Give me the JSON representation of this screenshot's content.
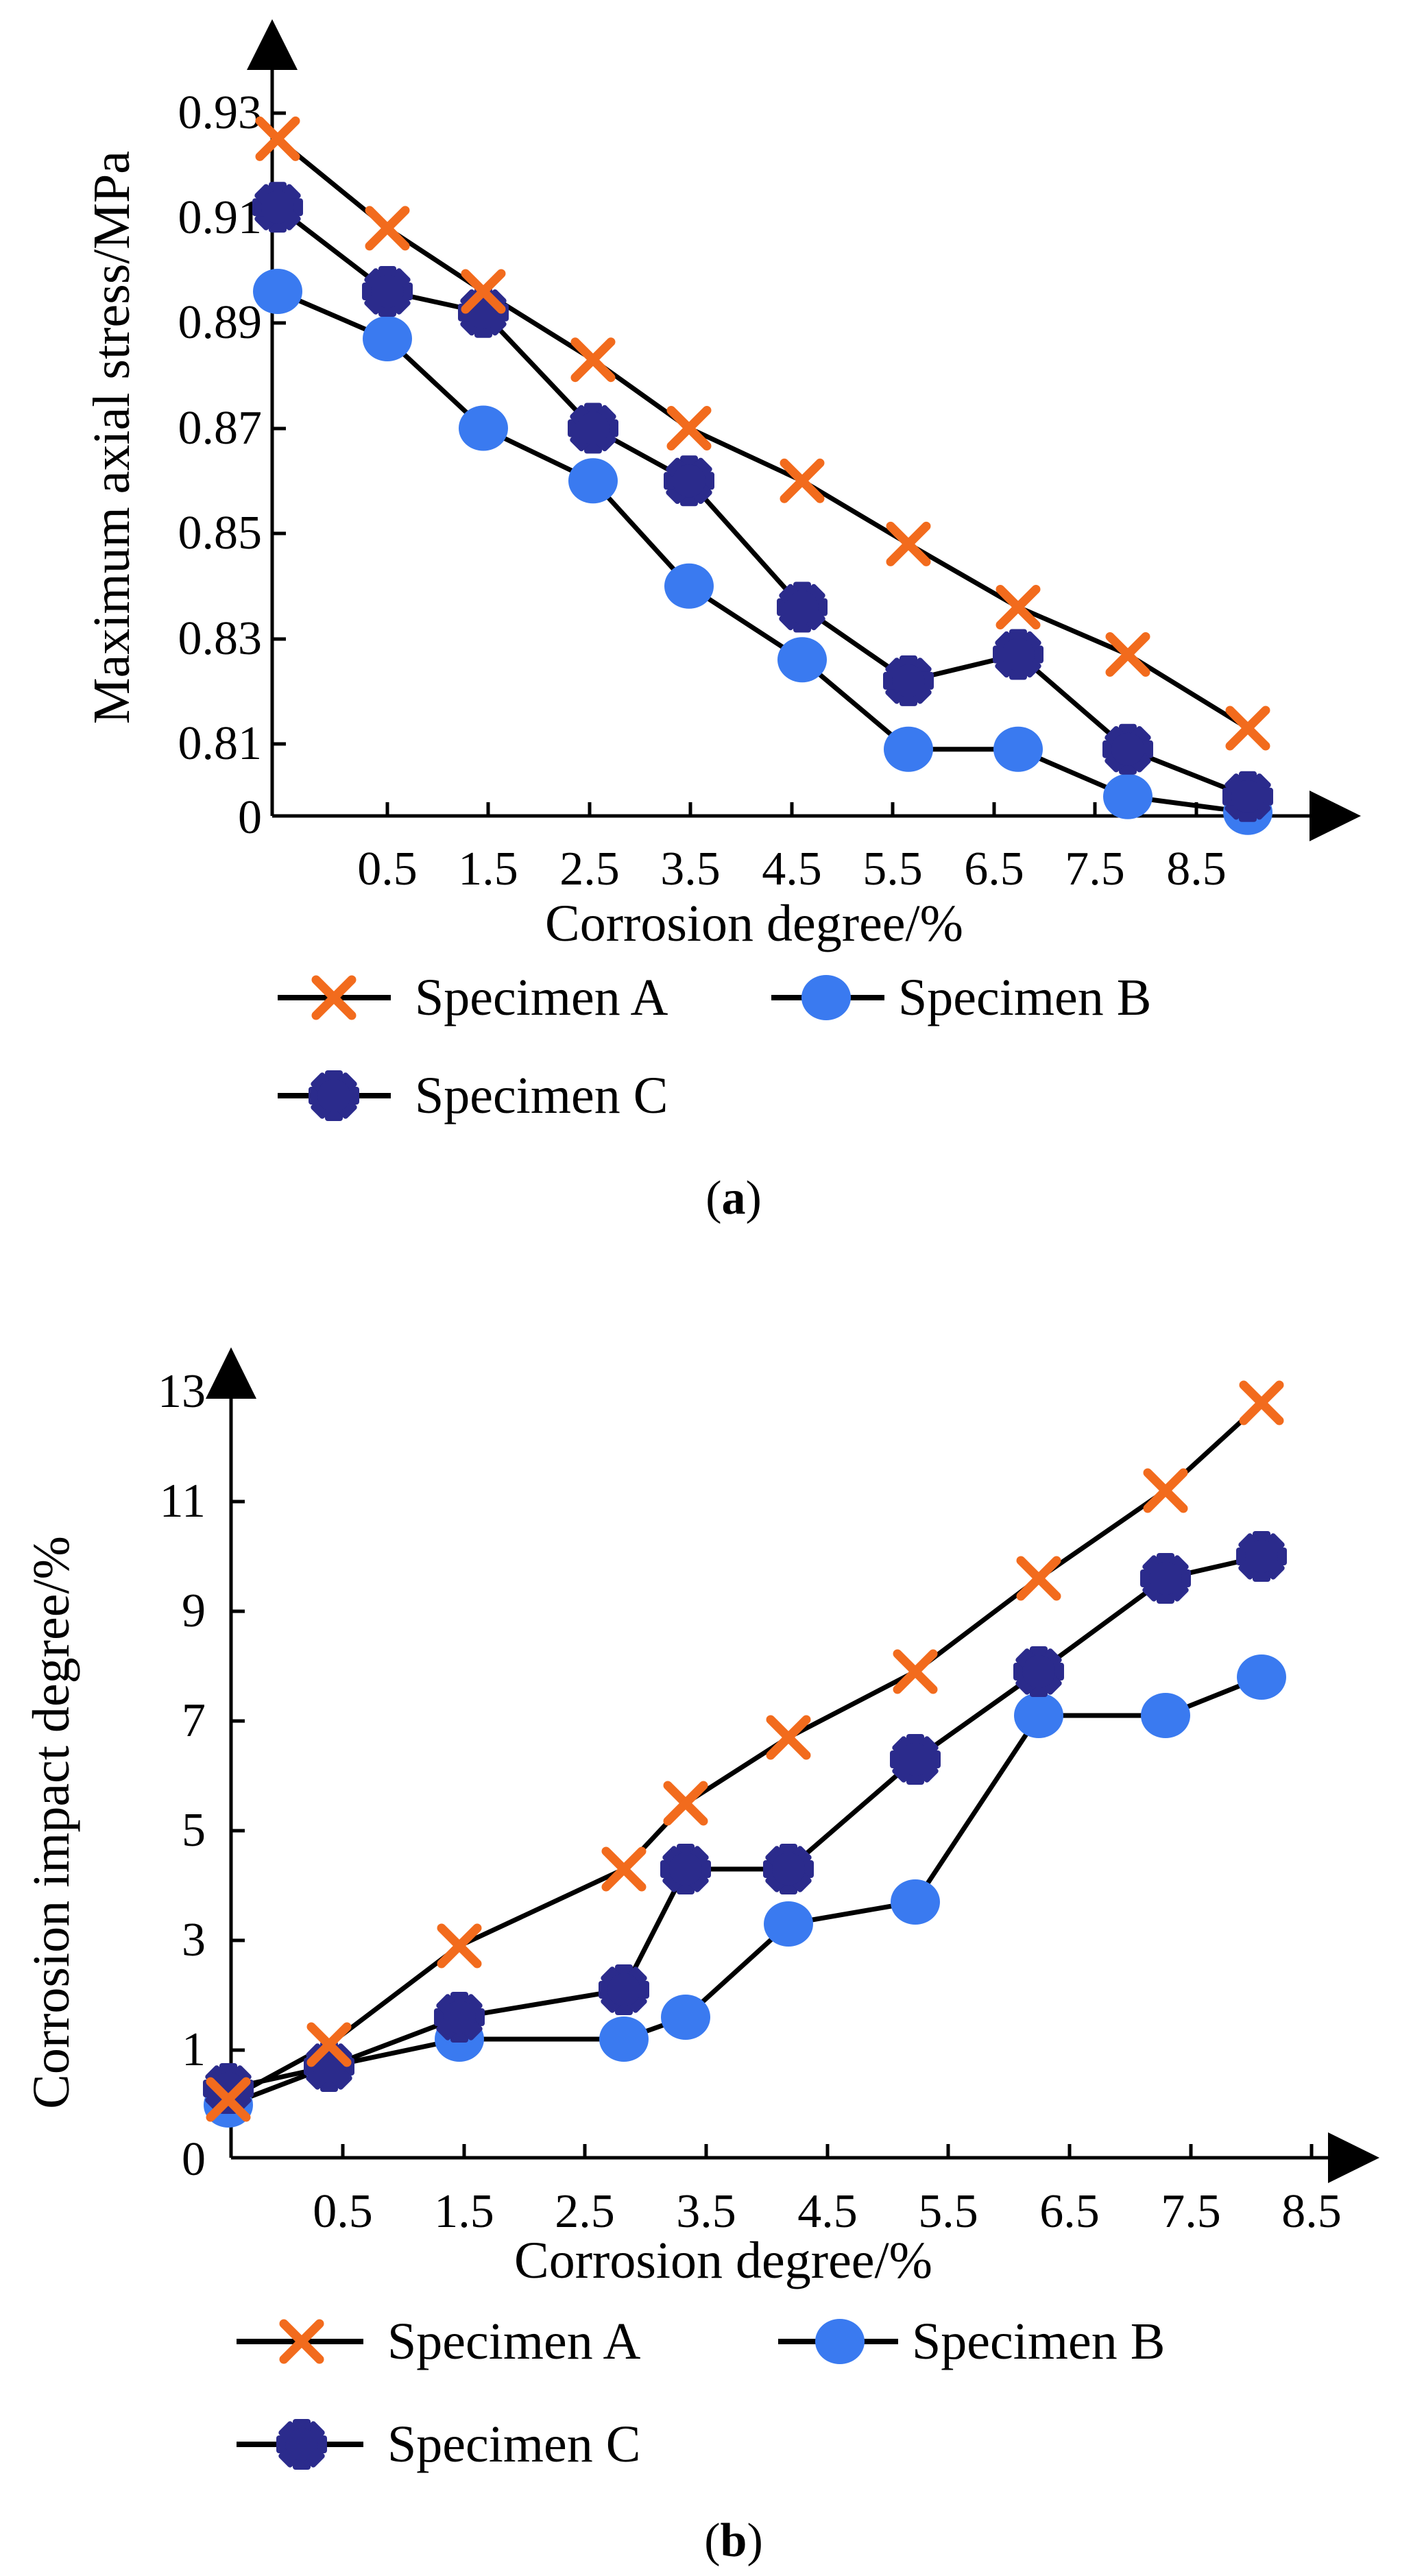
{
  "colors": {
    "specimen_a": "#F26B1D",
    "specimen_b": "#3A7AF0",
    "specimen_c": "#2B2B8C",
    "line": "#000000"
  },
  "chart_data": [
    {
      "type": "line",
      "caption_letter": "a",
      "xlabel": "Corrosion degree/%",
      "ylabel": "Maximum axial stress/MPa",
      "x_tick_labels": [
        "0.5",
        "1.5",
        "2.5",
        "3.5",
        "4.5",
        "5.5",
        "6.5",
        "7.5",
        "8.5"
      ],
      "y_tick_labels": [
        "0",
        "0.81",
        "0.83",
        "0.85",
        "0.87",
        "0.89",
        "0.91",
        "0.93"
      ],
      "series": [
        {
          "name": "Specimen A",
          "marker": "x",
          "values": [
            0.925,
            0.908,
            0.896,
            0.883,
            0.87,
            0.86,
            0.848,
            0.836,
            0.827,
            0.813
          ]
        },
        {
          "name": "Specimen B",
          "marker": "circle",
          "values": [
            0.896,
            0.887,
            0.87,
            0.86,
            0.84,
            0.826,
            0.809,
            0.809,
            0.8,
            0.797
          ]
        },
        {
          "name": "Specimen C",
          "marker": "star",
          "values": [
            0.912,
            0.896,
            0.892,
            0.87,
            0.86,
            0.836,
            0.822,
            0.827,
            0.809,
            0.8
          ]
        }
      ]
    },
    {
      "type": "line",
      "caption_letter": "b",
      "xlabel": "Corrosion degree/%",
      "ylabel": "Corrosion impact degree/%",
      "x_tick_labels": [
        "0.5",
        "1.5",
        "2.5",
        "3.5",
        "4.5",
        "5.5",
        "6.5",
        "7.5",
        "8.5"
      ],
      "y_tick_labels": [
        "0",
        "1",
        "3",
        "5",
        "7",
        "9",
        "11",
        "13"
      ],
      "series": [
        {
          "name": "Specimen A",
          "marker": "x",
          "values": [
            0.1,
            1.1,
            2.9,
            4.3,
            5.5,
            6.7,
            7.9,
            9.6,
            11.2,
            12.8
          ]
        },
        {
          "name": "Specimen B",
          "marker": "circle",
          "values": [
            0.0,
            0.7,
            1.2,
            1.2,
            1.6,
            3.3,
            3.7,
            7.1,
            7.1,
            7.8
          ]
        },
        {
          "name": "Specimen C",
          "marker": "star",
          "values": [
            0.3,
            0.7,
            1.6,
            2.1,
            4.3,
            4.3,
            6.3,
            7.9,
            9.6,
            10.0
          ]
        }
      ]
    }
  ]
}
